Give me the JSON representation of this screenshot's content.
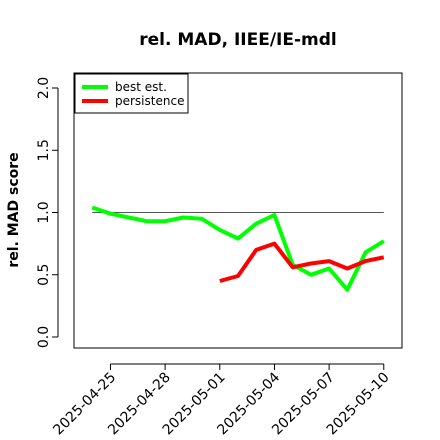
{
  "chart_data": {
    "type": "line",
    "title": "rel. MAD, IIEE/IE-mdl",
    "xlabel": "",
    "ylabel": "rel. MAD score",
    "ylim": [
      0,
      2
    ],
    "xlim": [
      "2025-04-23",
      "2025-05-11"
    ],
    "yticks": [
      0.0,
      0.5,
      1.0,
      1.5,
      2.0
    ],
    "ytick_labels": [
      "0.0",
      "0.5",
      "1.0",
      "1.5",
      "2.0"
    ],
    "xticks": [
      "2025-04-25",
      "2025-04-28",
      "2025-05-01",
      "2025-05-04",
      "2025-05-07",
      "2025-05-10"
    ],
    "reference_line": 1.0,
    "grid": false,
    "legend_position": "top-left",
    "series": [
      {
        "name": "best est.",
        "color": "#00ff00",
        "x": [
          "2025-04-24",
          "2025-04-25",
          "2025-04-26",
          "2025-04-27",
          "2025-04-28",
          "2025-04-29",
          "2025-04-30",
          "2025-05-01",
          "2025-05-02",
          "2025-05-03",
          "2025-05-04",
          "2025-05-05",
          "2025-05-06",
          "2025-05-07",
          "2025-05-08",
          "2025-05-09",
          "2025-05-10"
        ],
        "values": [
          1.04,
          0.99,
          0.96,
          0.93,
          0.93,
          0.96,
          0.95,
          0.86,
          0.79,
          0.91,
          0.98,
          0.58,
          0.5,
          0.55,
          0.38,
          0.68,
          0.77
        ]
      },
      {
        "name": "persistence",
        "color": "#ff0000",
        "x": [
          "2025-05-01",
          "2025-05-02",
          "2025-05-03",
          "2025-05-04",
          "2025-05-05",
          "2025-05-06",
          "2025-05-07",
          "2025-05-08",
          "2025-05-09",
          "2025-05-10"
        ],
        "values": [
          0.45,
          0.49,
          0.7,
          0.75,
          0.56,
          0.59,
          0.61,
          0.55,
          0.61,
          0.64
        ]
      }
    ]
  }
}
